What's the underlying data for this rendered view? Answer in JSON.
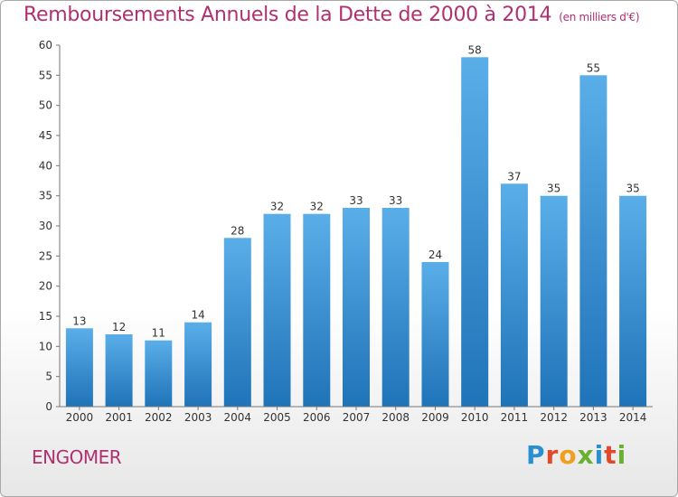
{
  "header": {
    "title": "Remboursements Annuels de la Dette de 2000 à 2014",
    "subtitle": "(en milliers d'€)"
  },
  "footer": {
    "place": "ENGOMER",
    "logo": "Proxiti"
  },
  "colors": {
    "title": "#b03070",
    "bar_top": "#5aaee8",
    "bar_bottom": "#1f73b8",
    "logo_letters": [
      "#2a8fd0",
      "#e04a2a",
      "#f0a020",
      "#6ab030",
      "#2a8fd0",
      "#e04a2a",
      "#6ab030"
    ]
  },
  "chart_data": {
    "type": "bar",
    "categories": [
      "2000",
      "2001",
      "2002",
      "2003",
      "2004",
      "2005",
      "2006",
      "2007",
      "2008",
      "2009",
      "2010",
      "2011",
      "2012",
      "2013",
      "2014"
    ],
    "values": [
      13,
      12,
      11,
      14,
      28,
      32,
      32,
      33,
      33,
      24,
      58,
      37,
      35,
      55,
      35
    ],
    "ylim": [
      0,
      60
    ],
    "yticks": [
      0,
      5,
      10,
      15,
      20,
      25,
      30,
      35,
      40,
      45,
      50,
      55,
      60
    ],
    "grid": false,
    "data_labels": true
  }
}
